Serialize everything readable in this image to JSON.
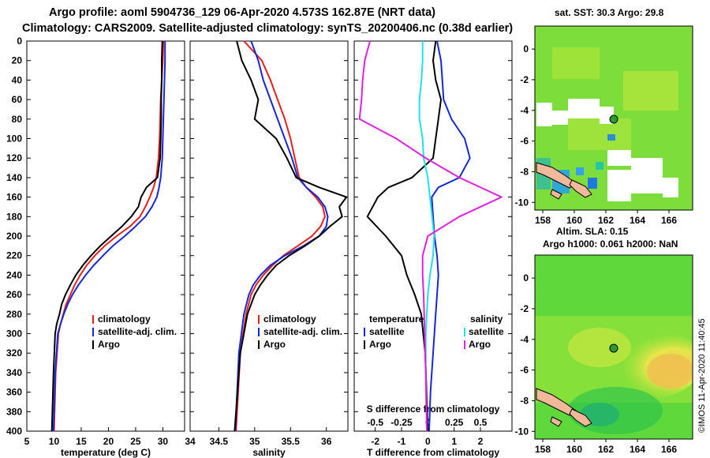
{
  "header": {
    "line1": "Argo profile: aoml 5904736_129 06-Apr-2020 4.573S 162.87E (NRT data)",
    "line2": "Climatology: CARS2009. Satellite-adjusted climatology: synTS_20200406.nc (0.38d earlier)"
  },
  "colors": {
    "climatology": "#e8201a",
    "satellite": "#1428d8",
    "argo": "#000000",
    "sat_temp": "#1428d8",
    "sat_sal": "#22e0e8",
    "argo_sal": "#e020e0"
  },
  "depth_axis": {
    "ticks": [
      "0",
      "20",
      "40",
      "60",
      "80",
      "100",
      "120",
      "140",
      "160",
      "180",
      "200",
      "220",
      "240",
      "260",
      "280",
      "300",
      "320",
      "340",
      "360",
      "380",
      "400"
    ]
  },
  "chart_data": [
    {
      "type": "line",
      "id": "temperature",
      "xlabel": "temperature (deg C)",
      "ylabel": "depth",
      "xlim": [
        5,
        34
      ],
      "ylim": [
        0,
        400
      ],
      "xticks": [
        "5",
        "10",
        "15",
        "20",
        "25",
        "30"
      ],
      "legend": [
        "climatology",
        "satellite-adj. clim.",
        "Argo"
      ],
      "series": [
        {
          "name": "climatology",
          "color": "#e8201a",
          "x": [
            30.1,
            30.0,
            29.8,
            29.6,
            29.5,
            29.4,
            29.2,
            28.8,
            28.3,
            27.6,
            26.8,
            25.8,
            24.0,
            21.5,
            19.3,
            17.5,
            16.0,
            14.8,
            13.8,
            13.0,
            12.2,
            11.7,
            11.2,
            10.8,
            10.3,
            10.0
          ],
          "y": [
            0,
            20,
            40,
            60,
            80,
            100,
            120,
            140,
            150,
            160,
            170,
            180,
            190,
            200,
            210,
            220,
            230,
            240,
            250,
            260,
            270,
            280,
            290,
            300,
            340,
            400
          ]
        },
        {
          "name": "satellite-adj. clim.",
          "color": "#1428d8",
          "x": [
            30.4,
            30.4,
            30.3,
            30.2,
            30.1,
            30.0,
            29.9,
            29.6,
            29.3,
            28.9,
            28.0,
            26.8,
            25.0,
            23.0,
            20.8,
            19.0,
            17.3,
            15.8,
            14.5,
            13.4,
            12.5,
            11.8,
            11.2,
            10.7,
            10.2,
            9.9
          ],
          "y": [
            0,
            20,
            40,
            60,
            80,
            100,
            120,
            140,
            150,
            160,
            170,
            180,
            190,
            200,
            210,
            220,
            230,
            240,
            250,
            260,
            270,
            280,
            290,
            300,
            340,
            400
          ]
        },
        {
          "name": "Argo",
          "color": "#000000",
          "x": [
            29.9,
            29.8,
            29.8,
            29.7,
            29.7,
            29.6,
            29.5,
            29.0,
            27.0,
            26.0,
            25.5,
            24.2,
            22.5,
            20.5,
            18.5,
            16.8,
            15.3,
            14.0,
            13.0,
            12.1,
            11.4,
            11.0,
            10.5,
            10.2,
            9.9,
            9.6
          ],
          "y": [
            0,
            20,
            40,
            60,
            80,
            100,
            120,
            140,
            150,
            160,
            170,
            180,
            190,
            200,
            210,
            220,
            230,
            240,
            250,
            260,
            270,
            280,
            290,
            300,
            340,
            400
          ]
        }
      ]
    },
    {
      "type": "line",
      "id": "salinity",
      "xlabel": "salinity",
      "ylabel": "depth",
      "xlim": [
        34.1,
        36.3
      ],
      "ylim": [
        0,
        400
      ],
      "xticks": [
        "34.5",
        "35",
        "35.5",
        "36"
      ],
      "legend": [
        "climatology",
        "satellite-adj. clim.",
        "Argo"
      ],
      "series": [
        {
          "name": "climatology",
          "color": "#e8201a",
          "x": [
            34.85,
            35.1,
            35.22,
            35.32,
            35.42,
            35.5,
            35.56,
            35.62,
            35.72,
            35.85,
            35.95,
            35.98,
            35.92,
            35.8,
            35.6,
            35.4,
            35.25,
            35.12,
            35.02,
            34.95,
            34.88,
            34.8,
            34.74
          ],
          "y": [
            0,
            20,
            40,
            60,
            80,
            100,
            120,
            140,
            150,
            160,
            170,
            180,
            190,
            200,
            210,
            220,
            230,
            240,
            250,
            260,
            280,
            320,
            400
          ]
        },
        {
          "name": "satellite-adj. clim.",
          "color": "#1428d8",
          "x": [
            34.95,
            35.05,
            35.12,
            35.22,
            35.32,
            35.42,
            35.52,
            35.6,
            35.72,
            35.88,
            35.98,
            36.02,
            36.0,
            35.9,
            35.68,
            35.42,
            35.22,
            35.08,
            34.98,
            34.92,
            34.85,
            34.78,
            34.73
          ],
          "y": [
            0,
            20,
            40,
            60,
            80,
            100,
            120,
            140,
            150,
            160,
            170,
            180,
            190,
            200,
            210,
            220,
            230,
            240,
            250,
            260,
            280,
            320,
            400
          ]
        },
        {
          "name": "Argo",
          "color": "#000000",
          "x": [
            34.75,
            34.82,
            34.95,
            35.05,
            35.0,
            35.3,
            35.45,
            35.58,
            35.9,
            36.28,
            36.18,
            36.22,
            36.05,
            35.9,
            35.7,
            35.48,
            35.3,
            35.18,
            35.08,
            35.0,
            34.9,
            34.8,
            34.72
          ],
          "y": [
            0,
            20,
            40,
            60,
            80,
            100,
            120,
            140,
            150,
            160,
            170,
            180,
            190,
            200,
            210,
            220,
            230,
            240,
            250,
            260,
            280,
            320,
            400
          ]
        }
      ]
    },
    {
      "type": "line",
      "id": "difference",
      "xlabel": "T difference from climatology",
      "x2label": "S difference from climatology",
      "xlim": [
        -2.8,
        3.2
      ],
      "x2lim": [
        -0.7,
        0.8
      ],
      "ylim": [
        0,
        400
      ],
      "xticks": [
        "-2",
        "-1",
        "0",
        "1",
        "2"
      ],
      "x2ticks": [
        "-0.5",
        "-0.25",
        "0",
        "0.25",
        "0.5"
      ],
      "legend_left_title": "temperature",
      "legend_right_title": "salinity",
      "legend_left": [
        "satellite",
        "Argo"
      ],
      "legend_right": [
        "satellite",
        "Argo"
      ],
      "series": [
        {
          "name": "temperature satellite",
          "color": "#1428d8",
          "axis": "T",
          "x": [
            0.35,
            0.5,
            0.55,
            0.6,
            0.9,
            1.4,
            1.6,
            1.2,
            0.4,
            0.15,
            0.2,
            0.25,
            0.35,
            0.4,
            0.3,
            0.2,
            0.1,
            0.05
          ],
          "y": [
            0,
            20,
            40,
            60,
            80,
            100,
            120,
            140,
            150,
            160,
            180,
            200,
            220,
            240,
            280,
            320,
            360,
            400
          ]
        },
        {
          "name": "temperature Argo",
          "color": "#000000",
          "axis": "T",
          "x": [
            0.3,
            0.2,
            0.3,
            0.5,
            0.4,
            0.3,
            0.2,
            -0.6,
            -1.5,
            -1.9,
            -2.3,
            -1.6,
            -1.0,
            -0.8,
            -0.5,
            -0.25,
            -0.1,
            -0.05,
            0.0
          ],
          "y": [
            0,
            20,
            40,
            60,
            80,
            100,
            120,
            140,
            150,
            160,
            180,
            200,
            220,
            240,
            260,
            280,
            320,
            360,
            400
          ]
        },
        {
          "name": "salinity satellite",
          "color": "#22e0e8",
          "axis": "S",
          "x": [
            -0.05,
            -0.05,
            -0.06,
            -0.08,
            -0.08,
            -0.05,
            -0.04,
            0.0,
            0.02,
            0.04,
            0.06,
            0.05,
            0.02,
            0.0,
            -0.02,
            -0.02,
            -0.01
          ],
          "y": [
            0,
            20,
            40,
            60,
            80,
            100,
            120,
            140,
            160,
            180,
            200,
            220,
            240,
            260,
            300,
            340,
            400
          ]
        },
        {
          "name": "salinity Argo",
          "color": "#e020e0",
          "axis": "S",
          "x": [
            -0.55,
            -0.6,
            -0.62,
            -0.63,
            -0.65,
            -0.3,
            -0.02,
            0.3,
            0.7,
            0.3,
            0.0,
            -0.05,
            -0.05,
            -0.04,
            -0.03,
            -0.02,
            -0.01
          ],
          "y": [
            0,
            20,
            40,
            60,
            80,
            100,
            120,
            140,
            160,
            180,
            200,
            220,
            240,
            260,
            300,
            340,
            400
          ]
        }
      ]
    }
  ],
  "maps": {
    "top_title": "sat. SST: 30.3 Argo: 29.8",
    "mid_title1": "Altim. SLA: 0.15",
    "mid_title2": "Argo h1000: 0.061 h2000: NaN",
    "xticks": [
      "158",
      "160",
      "162",
      "164",
      "166"
    ],
    "yticks": [
      "0",
      "-2",
      "-4",
      "-6",
      "-8",
      "-10"
    ],
    "credit": "©IMOS 11-Apr-2020 11:40:45"
  }
}
